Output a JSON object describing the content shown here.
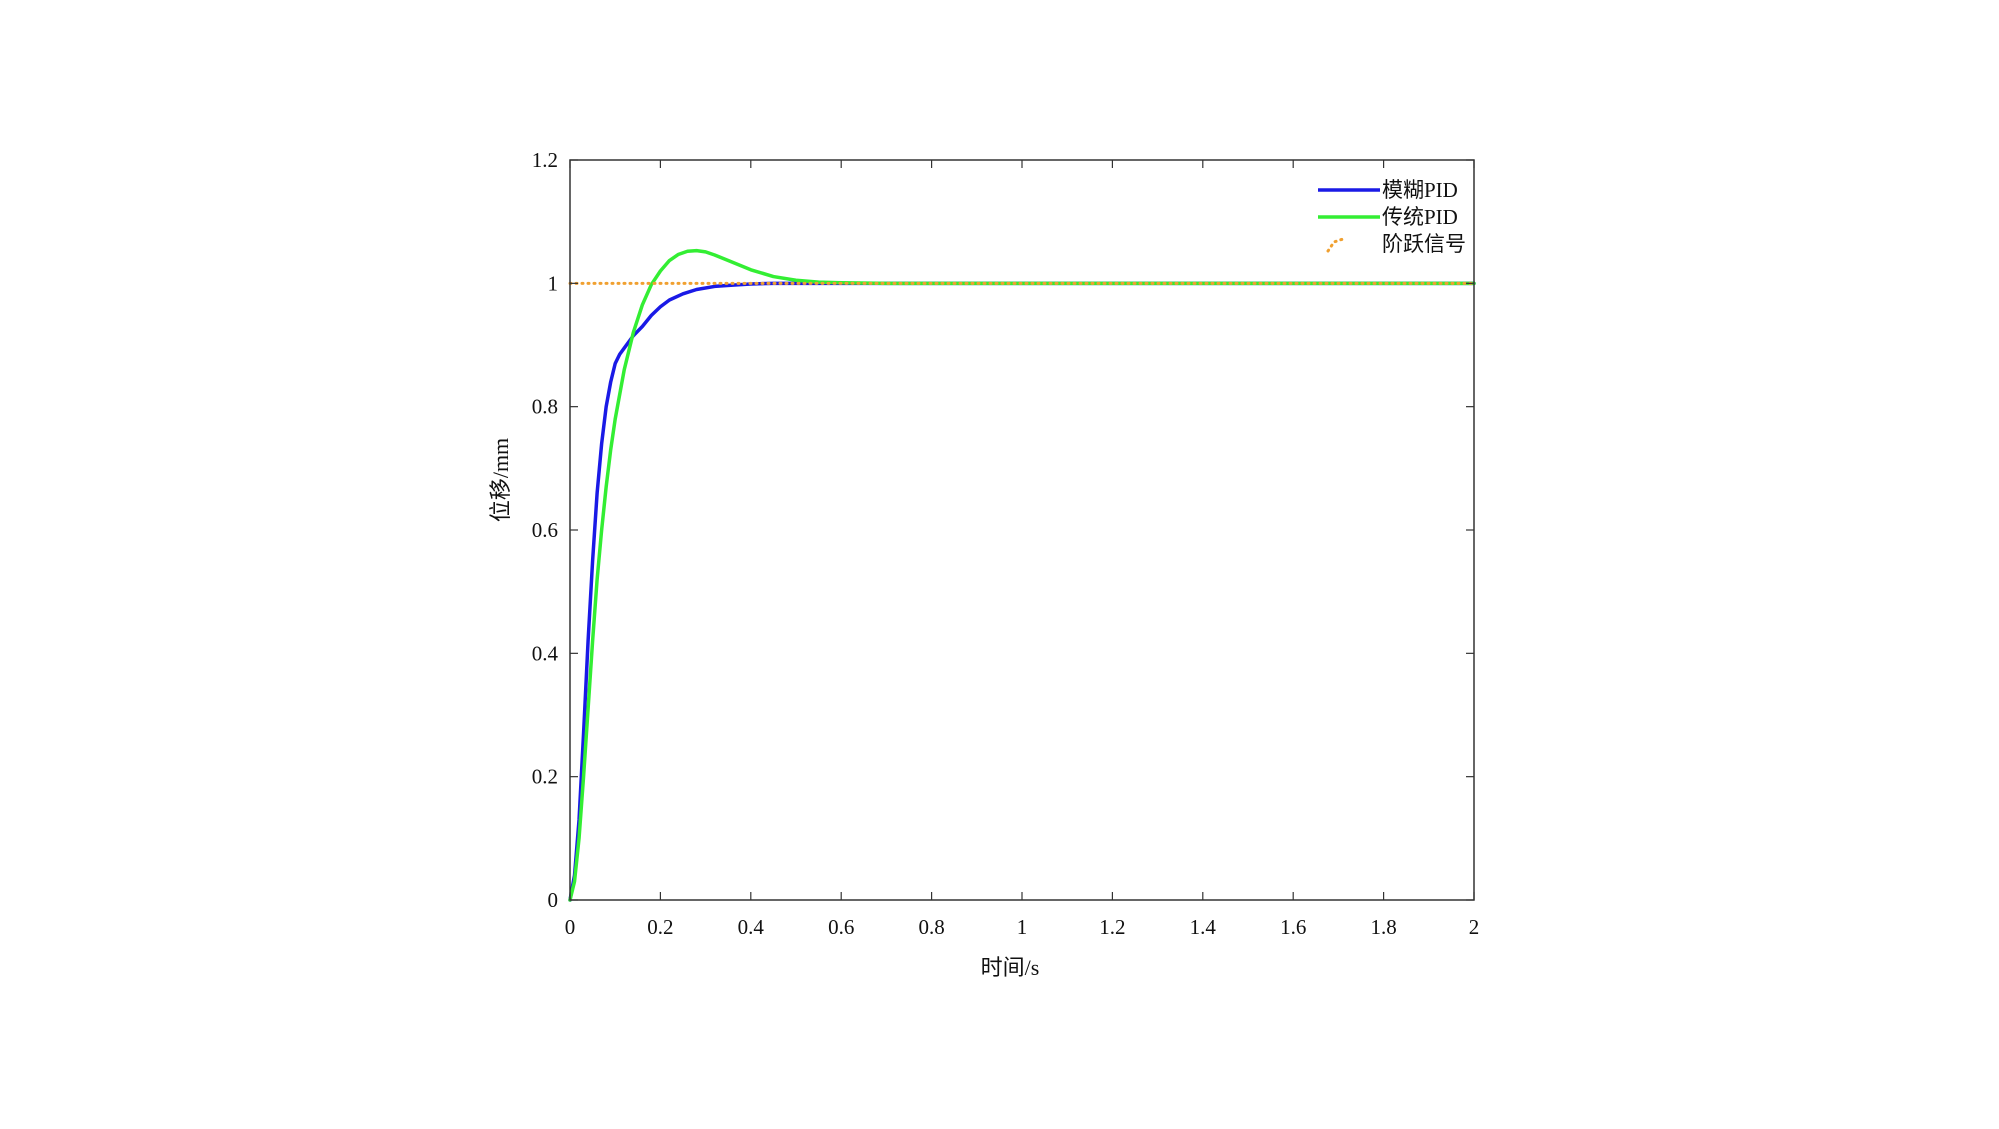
{
  "chart_data": {
    "type": "line",
    "title": "",
    "xlabel": "时间/s",
    "ylabel": "位移/mm",
    "xlim": [
      0,
      2
    ],
    "ylim": [
      0,
      1.2
    ],
    "xticks": [
      0,
      0.2,
      0.4,
      0.6,
      0.8,
      1,
      1.2,
      1.4,
      1.6,
      1.8,
      2
    ],
    "yticks": [
      0,
      0.2,
      0.4,
      0.6,
      0.8,
      1,
      1.2
    ],
    "xtick_labels": [
      "0",
      "0.2",
      "0.4",
      "0.6",
      "0.8",
      "1",
      "1.2",
      "1.4",
      "1.6",
      "1.8",
      "2"
    ],
    "ytick_labels": [
      "0",
      "0.2",
      "0.4",
      "0.6",
      "0.8",
      "1",
      "1.2"
    ],
    "grid": false,
    "legend_position": "top-right",
    "series": [
      {
        "name": "模糊PID",
        "color": "#1a1ae6",
        "style": "solid",
        "x": [
          0,
          0.01,
          0.02,
          0.03,
          0.04,
          0.05,
          0.06,
          0.07,
          0.08,
          0.09,
          0.1,
          0.11,
          0.12,
          0.13,
          0.14,
          0.16,
          0.18,
          0.2,
          0.22,
          0.25,
          0.28,
          0.32,
          0.36,
          0.4,
          0.45,
          0.5,
          0.6,
          0.8,
          1.0,
          1.5,
          2.0
        ],
        "y": [
          0,
          0.04,
          0.13,
          0.27,
          0.42,
          0.55,
          0.66,
          0.74,
          0.8,
          0.84,
          0.87,
          0.885,
          0.895,
          0.905,
          0.915,
          0.93,
          0.948,
          0.962,
          0.973,
          0.983,
          0.99,
          0.995,
          0.997,
          0.999,
          1.0,
          1.0,
          1.0,
          1.0,
          1.0,
          1.0,
          1.0
        ]
      },
      {
        "name": "传统PID",
        "color": "#33ee33",
        "style": "solid",
        "x": [
          0,
          0.01,
          0.02,
          0.03,
          0.04,
          0.05,
          0.06,
          0.07,
          0.08,
          0.09,
          0.1,
          0.12,
          0.14,
          0.16,
          0.18,
          0.2,
          0.22,
          0.24,
          0.26,
          0.28,
          0.3,
          0.32,
          0.35,
          0.4,
          0.45,
          0.5,
          0.55,
          0.6,
          0.7,
          0.8,
          1.0,
          1.5,
          2.0
        ],
        "y": [
          0,
          0.03,
          0.1,
          0.2,
          0.31,
          0.42,
          0.52,
          0.6,
          0.67,
          0.73,
          0.78,
          0.86,
          0.92,
          0.965,
          0.998,
          1.02,
          1.037,
          1.047,
          1.052,
          1.053,
          1.051,
          1.046,
          1.037,
          1.022,
          1.011,
          1.005,
          1.002,
          1.001,
          1.0,
          1.0,
          1.0,
          1.0,
          1.0
        ]
      },
      {
        "name": "阶跃信号",
        "color": "#f0a030",
        "style": "dotted",
        "x": [
          0,
          2
        ],
        "y": [
          1,
          1
        ]
      }
    ]
  }
}
